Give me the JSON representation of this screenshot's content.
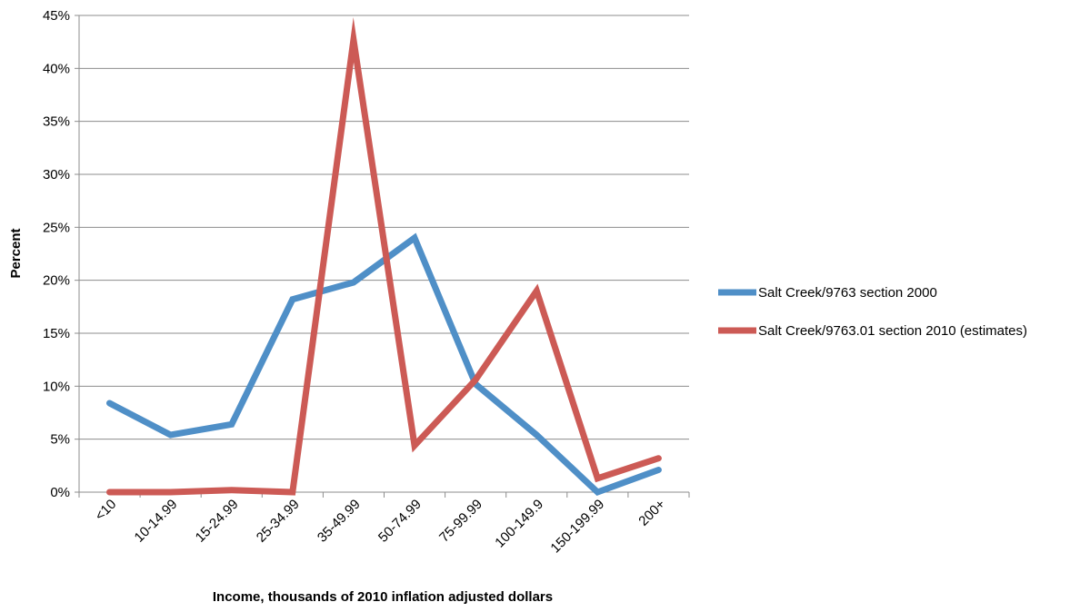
{
  "chart_data": {
    "type": "line",
    "title": "",
    "xlabel": "Income, thousands of 2010 inflation adjusted dollars",
    "ylabel": "Percent",
    "ylim": [
      0,
      45
    ],
    "y_tick_step": 5,
    "y_tick_format": "percent",
    "grid": "horizontal",
    "legend": "right",
    "categories": [
      "<10",
      "10-14.99",
      "15-24.99",
      "25-34.99",
      "35-49.99",
      "50-74.99",
      "75-99.99",
      "100-149.9",
      "150-199.99",
      "200+"
    ],
    "series": [
      {
        "name": "Salt Creek/9763 section 2000",
        "color": "#4f8fc7",
        "values": [
          8.4,
          5.4,
          6.4,
          18.2,
          19.8,
          24.0,
          10.2,
          5.4,
          0.0,
          2.1
        ]
      },
      {
        "name": "Salt Creek/9763.01 section 2010 (estimates)",
        "color": "#cc5a55",
        "values": [
          0.0,
          0.0,
          0.2,
          0.0,
          42.7,
          4.4,
          10.6,
          19.0,
          1.3,
          3.2
        ]
      }
    ]
  }
}
